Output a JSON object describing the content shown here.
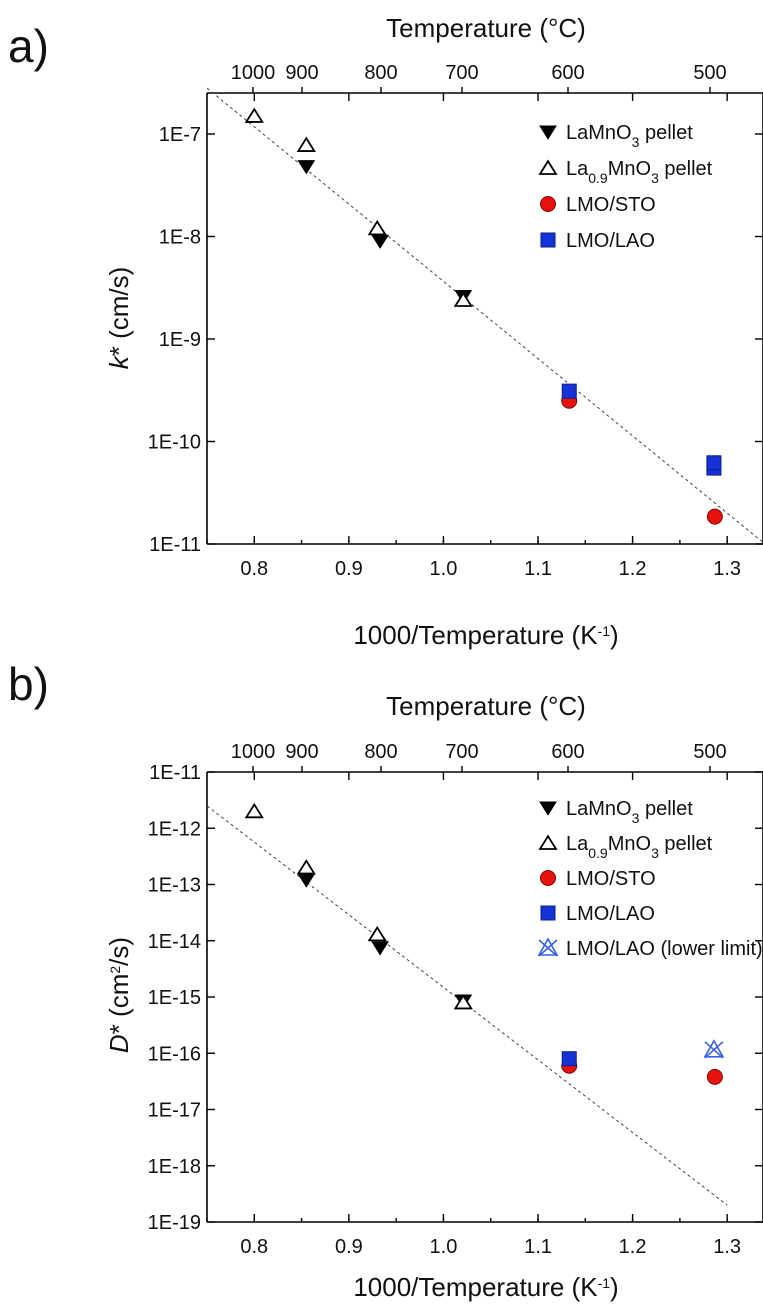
{
  "chart_data": [
    {
      "panel_label": "a)",
      "type": "scatter",
      "xlabel": "1000/Temperature (K⁻¹)",
      "xlabel_main": "1000/Temperature (K",
      "xlabel_sup": "-1",
      "xlabel_end": ")",
      "ylabel_italic": "k",
      "ylabel_rest": "* (cm/s)",
      "top_xlabel": "Temperature (°C)",
      "xlim": [
        0.75,
        1.34
      ],
      "ylim_log10": [
        -11,
        -6.6
      ],
      "log_y": true,
      "x_ticks": [
        "0.8",
        "0.9",
        "1.0",
        "1.1",
        "1.2",
        "1.3"
      ],
      "y_ticks": [
        "1E-11",
        "1E-10",
        "1E-9",
        "1E-8",
        "1E-7"
      ],
      "top_ticks": [
        "1000",
        "900",
        "800",
        "700",
        "600",
        "500"
      ],
      "legend_position": "top-right",
      "series": [
        {
          "name": "LaMnO3 pellet",
          "label_main": "LaMnO",
          "label_sub": "3",
          "label_end": " pellet",
          "marker": "down-triangle-filled",
          "color": "#000000",
          "x": [
            0.855,
            0.933,
            1.021
          ],
          "y": [
            4.8e-08,
            9e-09,
            2.6e-09
          ]
        },
        {
          "name": "La0.9MnO3 pellet",
          "label_main": "La",
          "label_sub": "0.9",
          "label_mid": "MnO",
          "label_sub2": "3",
          "label_end": " pellet",
          "marker": "up-triangle-open",
          "color": "#000000",
          "x": [
            0.8,
            0.855,
            0.93,
            1.021
          ],
          "y": [
            1.5e-07,
            7.8e-08,
            1.2e-08,
            2.4e-09
          ]
        },
        {
          "name": "LMO/STO",
          "label_main": "LMO/STO",
          "marker": "circle",
          "color": "#e8120c",
          "x": [
            1.133,
            1.287
          ],
          "y": [
            2.5e-10,
            1.85e-11
          ]
        },
        {
          "name": "LMO/LAO",
          "label_main": "LMO/LAO",
          "marker": "square",
          "color": "#1532d6",
          "x": [
            1.133,
            1.286,
            1.286
          ],
          "y": [
            3.1e-10,
            5.5e-11,
            6.2e-11
          ]
        }
      ],
      "fit_line": {
        "x": [
          0.75,
          1.34
        ],
        "y": [
          2.8e-07,
          1e-11
        ]
      }
    },
    {
      "panel_label": "b)",
      "type": "scatter",
      "xlabel": "1000/Temperature (K⁻¹)",
      "xlabel_main": "1000/Temperature (K",
      "xlabel_sup": "-1",
      "xlabel_end": ")",
      "ylabel_italic": "D",
      "ylabel_rest": "* (cm",
      "ylabel_sup": "2",
      "ylabel_end": "/s)",
      "top_xlabel": "Temperature (°C)",
      "xlim": [
        0.75,
        1.34
      ],
      "ylim_log10": [
        -19,
        -11
      ],
      "log_y": true,
      "x_ticks": [
        "0.8",
        "0.9",
        "1.0",
        "1.1",
        "1.2",
        "1.3"
      ],
      "y_ticks": [
        "1E-19",
        "1E-18",
        "1E-17",
        "1E-16",
        "1E-15",
        "1E-14",
        "1E-13",
        "1E-12",
        "1E-11"
      ],
      "top_ticks": [
        "1000",
        "900",
        "800",
        "700",
        "600",
        "500"
      ],
      "legend_position": "top-right",
      "series": [
        {
          "name": "LaMnO3 pellet",
          "label_main": "LaMnO",
          "label_sub": "3",
          "label_end": " pellet",
          "marker": "down-triangle-filled",
          "color": "#000000",
          "x": [
            0.855,
            0.933,
            1.021
          ],
          "y": [
            1.2e-13,
            7.5e-15,
            8.5e-16
          ]
        },
        {
          "name": "La0.9MnO3 pellet",
          "label_main": "La",
          "label_sub": "0.9",
          "label_mid": "MnO",
          "label_sub2": "3",
          "label_end": " pellet",
          "marker": "up-triangle-open",
          "color": "#000000",
          "x": [
            0.8,
            0.855,
            0.93,
            1.021
          ],
          "y": [
            2e-12,
            2e-13,
            1.3e-14,
            8e-16
          ]
        },
        {
          "name": "LMO/STO",
          "label_main": "LMO/STO",
          "marker": "circle",
          "color": "#e8120c",
          "x": [
            1.133,
            1.287
          ],
          "y": [
            6e-17,
            3.8e-17
          ]
        },
        {
          "name": "LMO/LAO",
          "label_main": "LMO/LAO",
          "marker": "square",
          "color": "#1532d6",
          "x": [
            1.133
          ],
          "y": [
            8e-17
          ]
        },
        {
          "name": "LMO/LAO (lower limit)",
          "label_main": "LMO/LAO (lower limit)",
          "marker": "cross-triangle",
          "color": "#3a63e0",
          "x": [
            1.286
          ],
          "y": [
            1.15e-16
          ]
        }
      ],
      "fit_line": {
        "x": [
          0.75,
          1.3
        ],
        "y": [
          2.5e-12,
          2e-19
        ]
      }
    }
  ]
}
